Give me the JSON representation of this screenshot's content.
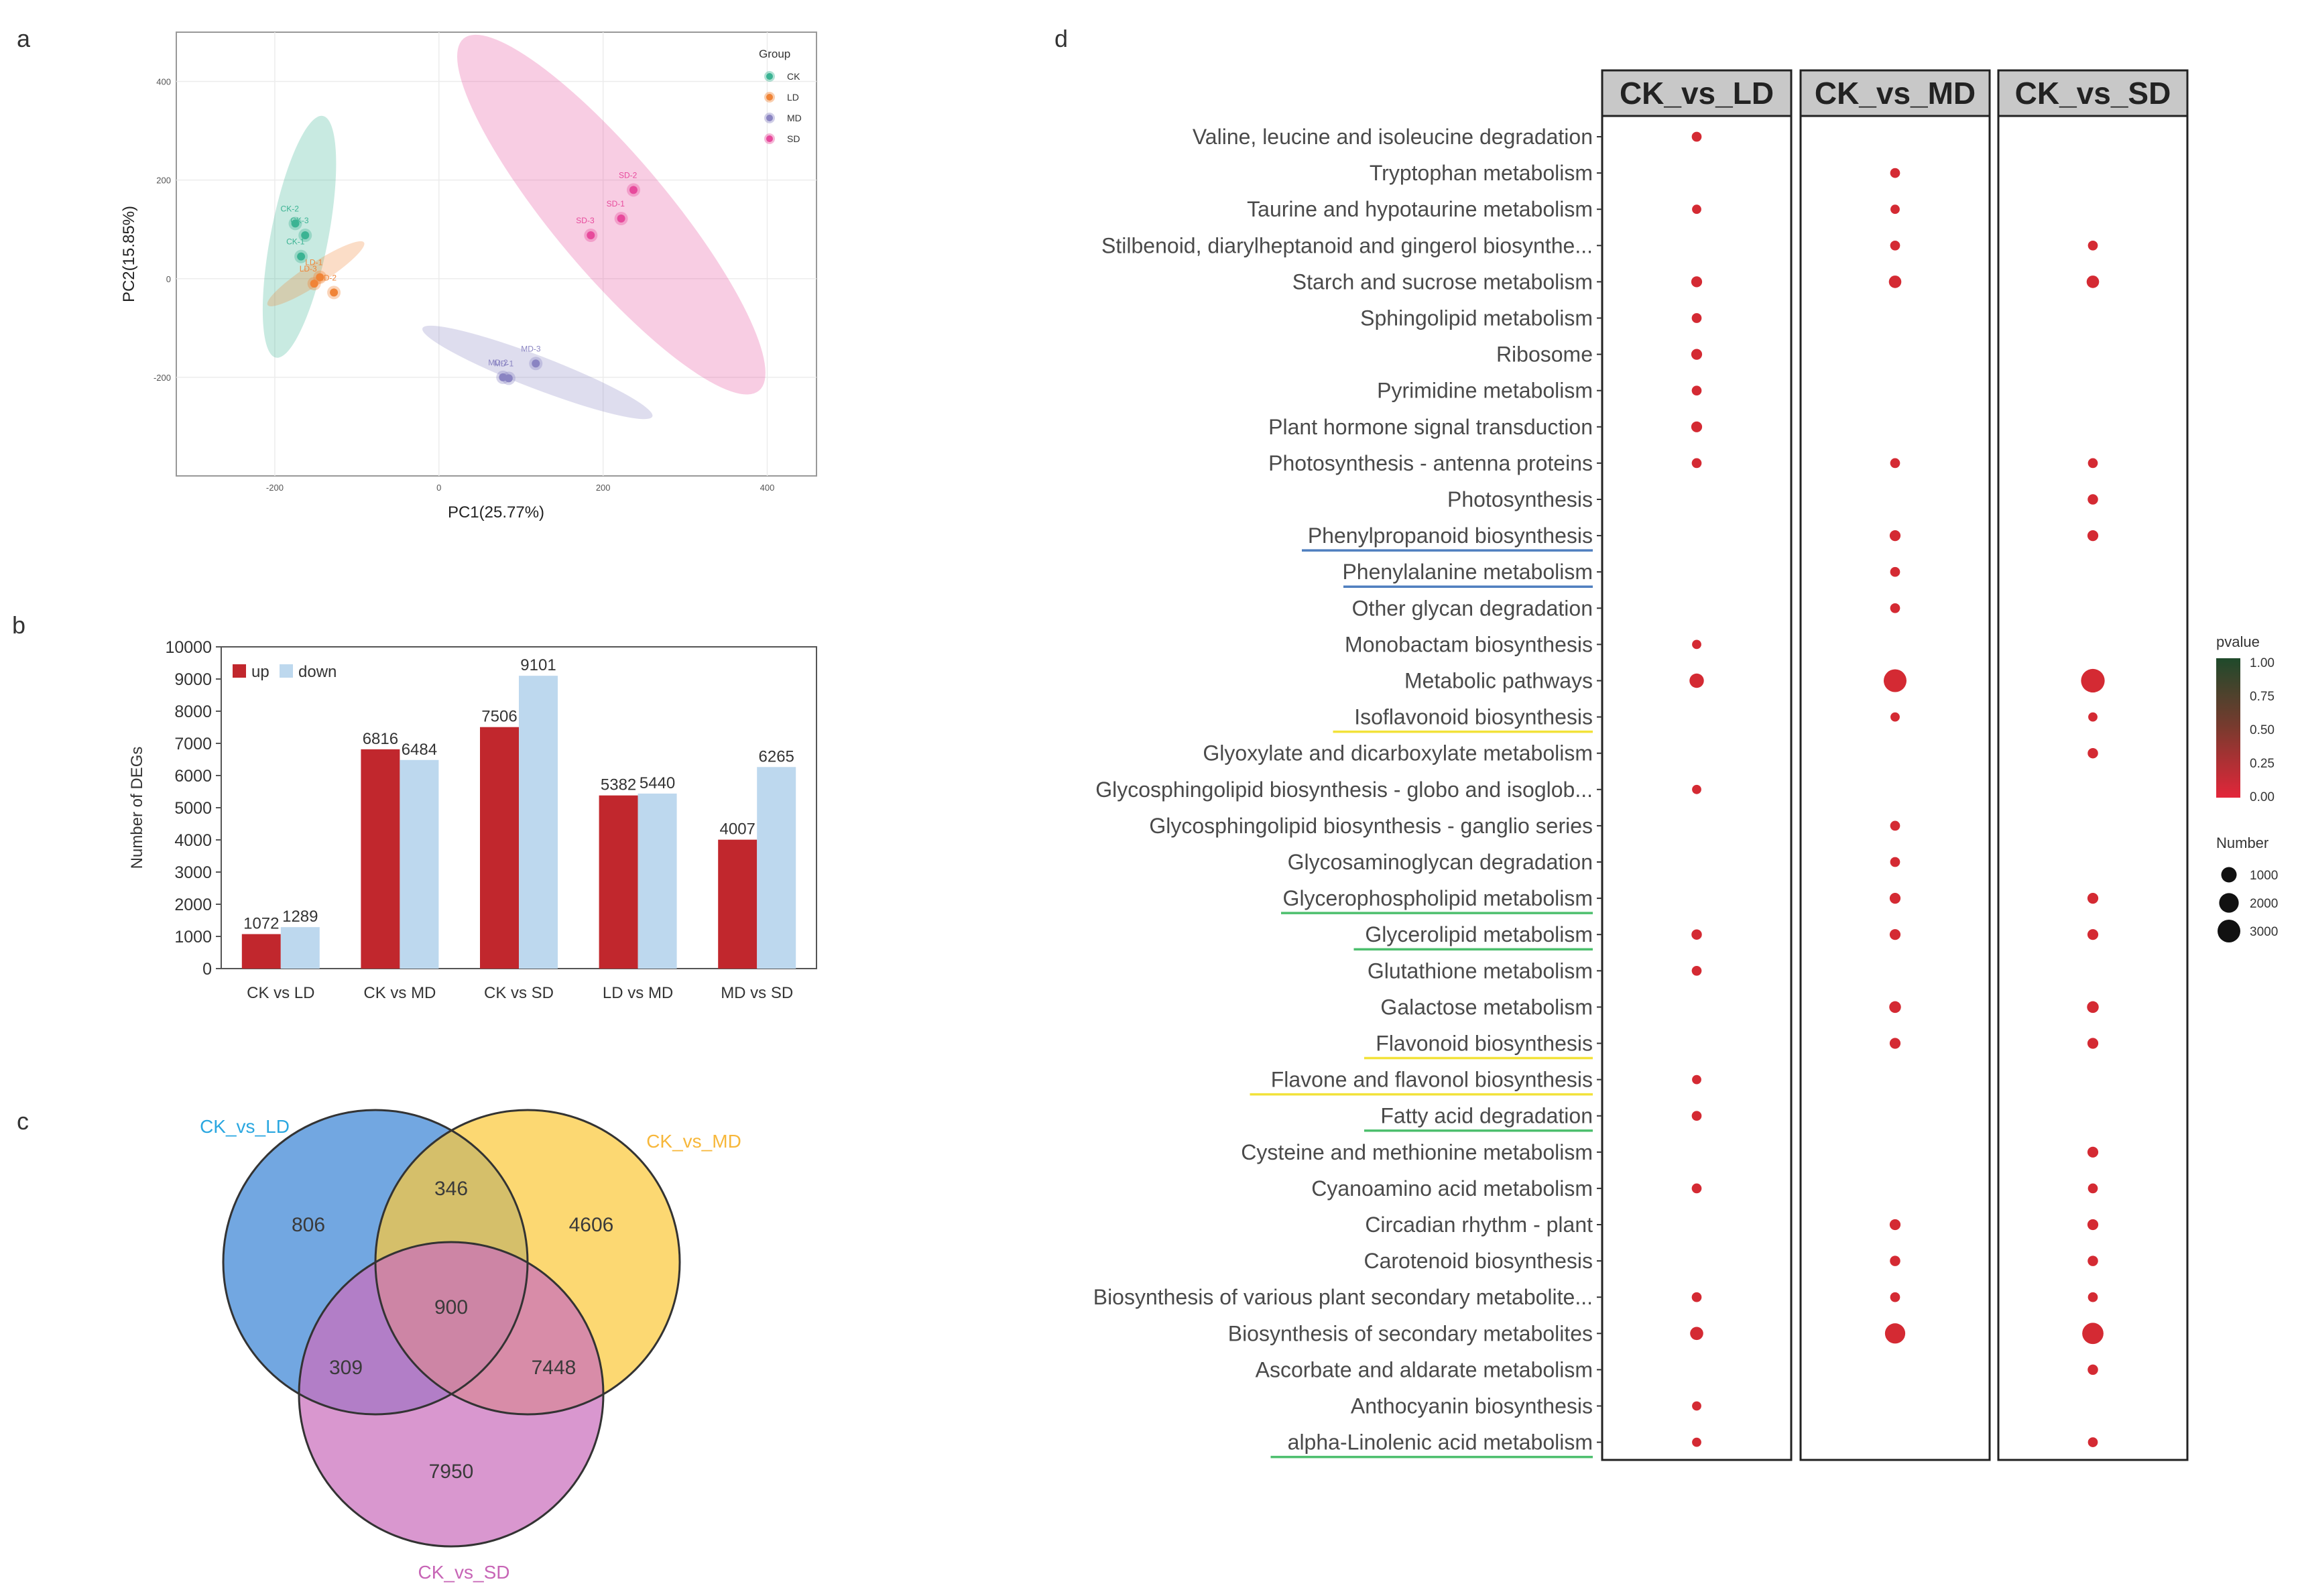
{
  "panel_labels": {
    "a": "a",
    "b": "b",
    "c": "c",
    "d": "d"
  },
  "colors": {
    "CK": "#3bb393",
    "LD": "#f08437",
    "MD": "#8a84c2",
    "SD": "#e74a9c",
    "up": "#c1272d",
    "down": "#bdd8ee",
    "venn_ld": "#4a8ed8",
    "venn_md": "#fbc93c",
    "venn_sd": "#cb6fbd",
    "dot": "#d42a33",
    "grid": "#ececec",
    "strip": "#c8c8c8"
  },
  "chart_data": [
    {
      "id": "pca",
      "type": "scatter",
      "xlabel": "PC1(25.77%)",
      "ylabel": "PC2(15.85%)",
      "xlim": [
        -320,
        460
      ],
      "ylim": [
        -400,
        500
      ],
      "xticks": [
        -200,
        0,
        200,
        400
      ],
      "yticks": [
        -200,
        0,
        200,
        400
      ],
      "xtick_labels": [
        "-200",
        "0",
        "200",
        "400"
      ],
      "ytick_labels": [
        "-200",
        "0",
        "200",
        "400"
      ],
      "legend": {
        "title": "Group",
        "position": "top-right",
        "entries": [
          "CK",
          "LD",
          "MD",
          "SD"
        ]
      },
      "ellipses": [
        {
          "group": "CK",
          "cx": -170,
          "cy": 85,
          "rx": 150,
          "ry": 35,
          "angle": -79
        },
        {
          "group": "LD",
          "cx": -150,
          "cy": 10,
          "rx": 70,
          "ry": 13,
          "angle": -33
        },
        {
          "group": "MD",
          "cx": 120,
          "cy": -190,
          "rx": 150,
          "ry": 20,
          "angle": 21
        },
        {
          "group": "SD",
          "cx": 210,
          "cy": 130,
          "rx": 280,
          "ry": 70,
          "angle": 50
        }
      ],
      "points": [
        {
          "group": "CK",
          "label": "CK-2",
          "x": -175,
          "y": 112
        },
        {
          "group": "CK",
          "label": "CK-3",
          "x": -163,
          "y": 88
        },
        {
          "group": "CK",
          "label": "CK-1",
          "x": -168,
          "y": 45
        },
        {
          "group": "LD",
          "label": "LD-1",
          "x": -145,
          "y": 3
        },
        {
          "group": "LD",
          "label": "LD-2",
          "x": -128,
          "y": -28
        },
        {
          "group": "LD",
          "label": "LD-3",
          "x": -152,
          "y": -10
        },
        {
          "group": "MD",
          "label": "MD-2",
          "x": 78,
          "y": -200
        },
        {
          "group": "MD",
          "label": "MD-1",
          "x": 85,
          "y": -202
        },
        {
          "group": "MD",
          "label": "MD-3",
          "x": 118,
          "y": -172
        },
        {
          "group": "SD",
          "label": "SD-2",
          "x": 237,
          "y": 180
        },
        {
          "group": "SD",
          "label": "SD-1",
          "x": 222,
          "y": 122
        },
        {
          "group": "SD",
          "label": "SD-3",
          "x": 185,
          "y": 88
        }
      ]
    },
    {
      "id": "degs",
      "type": "bar",
      "ylabel": "Number of DEGs",
      "ylim": [
        0,
        10000
      ],
      "yticks": [
        0,
        1000,
        2000,
        3000,
        4000,
        5000,
        6000,
        7000,
        8000,
        9000,
        10000
      ],
      "ytick_labels": [
        "0",
        "1000",
        "2000",
        "3000",
        "4000",
        "5000",
        "6000",
        "7000",
        "8000",
        "9000",
        "10000"
      ],
      "categories": [
        "CK vs LD",
        "CK vs MD",
        "CK vs SD",
        "LD vs MD",
        "MD vs SD"
      ],
      "legend": {
        "position": "top-left"
      },
      "series": [
        {
          "name": "up",
          "values": [
            1072,
            6816,
            7506,
            5382,
            4007
          ],
          "labels": [
            "1072",
            "6816",
            "7506",
            "5382",
            "4007"
          ]
        },
        {
          "name": "down",
          "values": [
            1289,
            6484,
            9101,
            5440,
            6265
          ],
          "labels": [
            "1289",
            "6484",
            "9101",
            "5440",
            "6265"
          ]
        }
      ]
    },
    {
      "id": "venn",
      "type": "venn",
      "sets": [
        "CK_vs_LD",
        "CK_vs_MD",
        "CK_vs_SD"
      ],
      "regions": {
        "ld_only": "806",
        "ld_md": "346",
        "md_only": "4606",
        "all": "900",
        "ld_sd": "309",
        "md_sd": "7448",
        "sd_only": "7950"
      }
    },
    {
      "id": "kegg",
      "type": "dotplot",
      "facets": [
        "CK_vs_LD",
        "CK_vs_MD",
        "CK_vs_SD"
      ],
      "pathways": [
        "Valine, leucine and isoleucine degradation",
        "Tryptophan metabolism",
        "Taurine and hypotaurine metabolism",
        "Stilbenoid, diarylheptanoid and gingerol biosynthe...",
        "Starch and sucrose metabolism",
        "Sphingolipid metabolism",
        "Ribosome",
        "Pyrimidine metabolism",
        "Plant hormone signal transduction",
        "Photosynthesis - antenna proteins",
        "Photosynthesis",
        "Phenylpropanoid biosynthesis",
        "Phenylalanine metabolism",
        "Other glycan degradation",
        "Monobactam biosynthesis",
        "Metabolic pathways",
        "Isoflavonoid biosynthesis",
        "Glyoxylate and dicarboxylate metabolism",
        "Glycosphingolipid biosynthesis - globo and isoglob...",
        "Glycosphingolipid biosynthesis - ganglio series",
        "Glycosaminoglycan degradation",
        "Glycerophospholipid metabolism",
        "Glycerolipid metabolism",
        "Glutathione metabolism",
        "Galactose metabolism",
        "Flavonoid biosynthesis",
        "Flavone and flavonol biosynthesis",
        "Fatty acid degradation",
        "Cysteine and methionine metabolism",
        "Cyanoamino acid metabolism",
        "Circadian rhythm - plant",
        "Carotenoid biosynthesis",
        "Biosynthesis of various plant secondary metabolite...",
        "Biosynthesis of secondary metabolites",
        "Ascorbate and aldarate metabolism",
        "Anthocyanin biosynthesis",
        "alpha-Linolenic acid metabolism"
      ],
      "underlines": [
        {
          "row": 11,
          "color": "#4f7fbf"
        },
        {
          "row": 12,
          "color": "#4f7fbf"
        },
        {
          "row": 16,
          "color": "#f2e23a"
        },
        {
          "row": 21,
          "color": "#4dbf6e"
        },
        {
          "row": 22,
          "color": "#4dbf6e"
        },
        {
          "row": 25,
          "color": "#f2e23a"
        },
        {
          "row": 26,
          "color": "#f2e23a"
        },
        {
          "row": 27,
          "color": "#4dbf6e"
        },
        {
          "row": 36,
          "color": "#4dbf6e"
        }
      ],
      "dots": [
        {
          "row": 0,
          "facet": 0,
          "number": 200
        },
        {
          "row": 1,
          "facet": 1,
          "number": 200
        },
        {
          "row": 2,
          "facet": 0,
          "number": 150
        },
        {
          "row": 2,
          "facet": 1,
          "number": 150
        },
        {
          "row": 3,
          "facet": 1,
          "number": 200
        },
        {
          "row": 3,
          "facet": 2,
          "number": 200
        },
        {
          "row": 4,
          "facet": 0,
          "number": 300
        },
        {
          "row": 4,
          "facet": 1,
          "number": 500
        },
        {
          "row": 4,
          "facet": 2,
          "number": 500
        },
        {
          "row": 5,
          "facet": 0,
          "number": 200
        },
        {
          "row": 6,
          "facet": 0,
          "number": 300
        },
        {
          "row": 7,
          "facet": 0,
          "number": 200
        },
        {
          "row": 8,
          "facet": 0,
          "number": 300
        },
        {
          "row": 9,
          "facet": 0,
          "number": 200
        },
        {
          "row": 9,
          "facet": 1,
          "number": 200
        },
        {
          "row": 9,
          "facet": 2,
          "number": 200
        },
        {
          "row": 10,
          "facet": 2,
          "number": 250
        },
        {
          "row": 11,
          "facet": 1,
          "number": 300
        },
        {
          "row": 11,
          "facet": 2,
          "number": 300
        },
        {
          "row": 12,
          "facet": 1,
          "number": 200
        },
        {
          "row": 13,
          "facet": 1,
          "number": 200
        },
        {
          "row": 14,
          "facet": 0,
          "number": 150
        },
        {
          "row": 15,
          "facet": 0,
          "number": 800
        },
        {
          "row": 15,
          "facet": 1,
          "number": 3000
        },
        {
          "row": 15,
          "facet": 2,
          "number": 3300
        },
        {
          "row": 16,
          "facet": 1,
          "number": 150
        },
        {
          "row": 16,
          "facet": 2,
          "number": 150
        },
        {
          "row": 17,
          "facet": 2,
          "number": 250
        },
        {
          "row": 18,
          "facet": 0,
          "number": 150
        },
        {
          "row": 19,
          "facet": 1,
          "number": 200
        },
        {
          "row": 20,
          "facet": 1,
          "number": 200
        },
        {
          "row": 21,
          "facet": 1,
          "number": 300
        },
        {
          "row": 21,
          "facet": 2,
          "number": 300
        },
        {
          "row": 22,
          "facet": 0,
          "number": 250
        },
        {
          "row": 22,
          "facet": 1,
          "number": 300
        },
        {
          "row": 22,
          "facet": 2,
          "number": 300
        },
        {
          "row": 23,
          "facet": 0,
          "number": 200
        },
        {
          "row": 24,
          "facet": 1,
          "number": 400
        },
        {
          "row": 24,
          "facet": 2,
          "number": 400
        },
        {
          "row": 25,
          "facet": 1,
          "number": 300
        },
        {
          "row": 25,
          "facet": 2,
          "number": 300
        },
        {
          "row": 26,
          "facet": 0,
          "number": 150
        },
        {
          "row": 27,
          "facet": 0,
          "number": 200
        },
        {
          "row": 28,
          "facet": 2,
          "number": 300
        },
        {
          "row": 29,
          "facet": 0,
          "number": 200
        },
        {
          "row": 29,
          "facet": 2,
          "number": 200
        },
        {
          "row": 30,
          "facet": 1,
          "number": 300
        },
        {
          "row": 30,
          "facet": 2,
          "number": 300
        },
        {
          "row": 31,
          "facet": 1,
          "number": 250
        },
        {
          "row": 31,
          "facet": 2,
          "number": 250
        },
        {
          "row": 32,
          "facet": 0,
          "number": 200
        },
        {
          "row": 32,
          "facet": 1,
          "number": 200
        },
        {
          "row": 32,
          "facet": 2,
          "number": 200
        },
        {
          "row": 33,
          "facet": 0,
          "number": 600
        },
        {
          "row": 33,
          "facet": 1,
          "number": 2200
        },
        {
          "row": 33,
          "facet": 2,
          "number": 2500
        },
        {
          "row": 34,
          "facet": 2,
          "number": 250
        },
        {
          "row": 35,
          "facet": 0,
          "number": 150
        },
        {
          "row": 36,
          "facet": 0,
          "number": 150
        },
        {
          "row": 36,
          "facet": 2,
          "number": 200
        }
      ],
      "legend": {
        "pvalue_title": "pvalue",
        "pvalue_ticks": [
          "1.00",
          "0.75",
          "0.50",
          "0.25",
          "0.00"
        ],
        "number_title": "Number",
        "number_values": [
          1000,
          2000,
          3000
        ],
        "number_labels": [
          "1000",
          "2000",
          "3000"
        ]
      }
    }
  ]
}
